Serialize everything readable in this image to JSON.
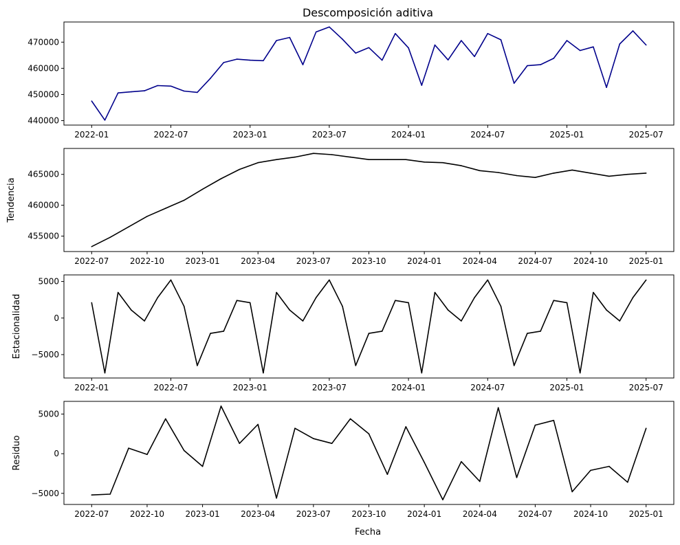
{
  "figure_title": "Descomposición aditiva",
  "xlabel_bottom": "Fecha",
  "chart_data": [
    {
      "type": "line",
      "title": "Descomposición aditiva",
      "ylabel": "",
      "color": "#00008b",
      "x": [
        "2022-01",
        "2022-02",
        "2022-03",
        "2022-04",
        "2022-05",
        "2022-06",
        "2022-07",
        "2022-08",
        "2022-09",
        "2022-10",
        "2022-11",
        "2022-12",
        "2023-01",
        "2023-02",
        "2023-03",
        "2023-04",
        "2023-05",
        "2023-06",
        "2023-07",
        "2023-08",
        "2023-09",
        "2023-10",
        "2023-11",
        "2023-12",
        "2024-01",
        "2024-02",
        "2024-03",
        "2024-04",
        "2024-05",
        "2024-06",
        "2024-07",
        "2024-08",
        "2024-09",
        "2024-10",
        "2024-11",
        "2024-12",
        "2025-01",
        "2025-02",
        "2025-03",
        "2025-04",
        "2025-05",
        "2025-06",
        "2025-07"
      ],
      "values": [
        447500,
        440200,
        450600,
        451000,
        451400,
        453400,
        453200,
        451300,
        450800,
        456200,
        462200,
        463500,
        463100,
        462900,
        470600,
        471800,
        461400,
        473900,
        475800,
        471100,
        465800,
        467900,
        463100,
        473300,
        467800,
        453500,
        468900,
        463200,
        470600,
        464500,
        473300,
        470900,
        454300,
        461000,
        461400,
        463800,
        470600,
        466800,
        468200,
        452700,
        469300,
        474300,
        468900
      ],
      "ylim": [
        438300,
        477700
      ],
      "yticks": [
        440000,
        450000,
        460000,
        470000
      ],
      "xtick_labels": [
        "2022-01",
        "2022-07",
        "2023-01",
        "2023-07",
        "2024-01",
        "2024-07",
        "2025-01",
        "2025-07"
      ]
    },
    {
      "type": "line",
      "ylabel": "Tendencia",
      "color": "#000000",
      "x": [
        "2022-07",
        "2022-08",
        "2022-09",
        "2022-10",
        "2022-11",
        "2022-12",
        "2023-01",
        "2023-02",
        "2023-03",
        "2023-04",
        "2023-05",
        "2023-06",
        "2023-07",
        "2023-08",
        "2023-09",
        "2023-10",
        "2023-11",
        "2023-12",
        "2024-01",
        "2024-02",
        "2024-03",
        "2024-04",
        "2024-05",
        "2024-06",
        "2024-07",
        "2024-08",
        "2024-09",
        "2024-10",
        "2024-11",
        "2024-12",
        "2025-01"
      ],
      "values": [
        453300,
        454800,
        456500,
        458200,
        459500,
        460800,
        462600,
        464300,
        465800,
        466900,
        467400,
        467800,
        468400,
        468200,
        467800,
        467400,
        467400,
        467400,
        467000,
        466900,
        466400,
        465600,
        465300,
        464800,
        464500,
        465200,
        465700,
        465200,
        464700,
        465000,
        465200
      ],
      "ylim": [
        452500,
        469200
      ],
      "yticks": [
        455000,
        460000,
        465000
      ],
      "xtick_labels": [
        "2022-07",
        "2022-10",
        "2023-01",
        "2023-04",
        "2023-07",
        "2023-10",
        "2024-01",
        "2024-04",
        "2024-07",
        "2024-10",
        "2025-01"
      ]
    },
    {
      "type": "line",
      "ylabel": "Estacionalidad",
      "color": "#000000",
      "x": [
        "2022-01",
        "2022-02",
        "2022-03",
        "2022-04",
        "2022-05",
        "2022-06",
        "2022-07",
        "2022-08",
        "2022-09",
        "2022-10",
        "2022-11",
        "2022-12",
        "2023-01",
        "2023-02",
        "2023-03",
        "2023-04",
        "2023-05",
        "2023-06",
        "2023-07",
        "2023-08",
        "2023-09",
        "2023-10",
        "2023-11",
        "2023-12",
        "2024-01",
        "2024-02",
        "2024-03",
        "2024-04",
        "2024-05",
        "2024-06",
        "2024-07",
        "2024-08",
        "2024-09",
        "2024-10",
        "2024-11",
        "2024-12",
        "2025-01",
        "2025-02",
        "2025-03",
        "2025-04",
        "2025-05",
        "2025-06",
        "2025-07"
      ],
      "values": [
        2100,
        -7500,
        3500,
        1100,
        -400,
        2800,
        5200,
        1600,
        -6500,
        -2100,
        -1800,
        2400,
        2100,
        -7500,
        3500,
        1100,
        -400,
        2800,
        5200,
        1600,
        -6500,
        -2100,
        -1800,
        2400,
        2100,
        -7500,
        3500,
        1100,
        -400,
        2800,
        5200,
        1600,
        -6500,
        -2100,
        -1800,
        2400,
        2100,
        -7500,
        3500,
        1100,
        -400,
        2800,
        5200
      ],
      "ylim": [
        -8200,
        5900
      ],
      "yticks": [
        -5000,
        0,
        5000
      ],
      "xtick_labels": [
        "2022-01",
        "2022-07",
        "2023-01",
        "2023-07",
        "2024-01",
        "2024-07",
        "2025-01",
        "2025-07"
      ]
    },
    {
      "type": "line",
      "ylabel": "Residuo",
      "color": "#000000",
      "x": [
        "2022-07",
        "2022-08",
        "2022-09",
        "2022-10",
        "2022-11",
        "2022-12",
        "2023-01",
        "2023-02",
        "2023-03",
        "2023-04",
        "2023-05",
        "2023-06",
        "2023-07",
        "2023-08",
        "2023-09",
        "2023-10",
        "2023-11",
        "2023-12",
        "2024-01",
        "2024-02",
        "2024-03",
        "2024-04",
        "2024-05",
        "2024-06",
        "2024-07",
        "2024-08",
        "2024-09",
        "2024-10",
        "2024-11",
        "2024-12",
        "2025-01"
      ],
      "values": [
        -5200,
        -5100,
        700,
        -100,
        4400,
        400,
        -1600,
        6000,
        1300,
        3700,
        -5600,
        3200,
        1900,
        1300,
        4400,
        2500,
        -2600,
        3400,
        -1100,
        -5800,
        -1000,
        -3500,
        5800,
        -3000,
        3600,
        4200,
        -4800,
        -2100,
        -1600,
        -3600,
        3200
      ],
      "ylim": [
        -6400,
        6600
      ],
      "yticks": [
        -5000,
        0,
        5000
      ],
      "xtick_labels": [
        "2022-07",
        "2022-10",
        "2023-01",
        "2023-04",
        "2023-07",
        "2023-10",
        "2024-01",
        "2024-04",
        "2024-07",
        "2024-10",
        "2025-01"
      ]
    }
  ]
}
